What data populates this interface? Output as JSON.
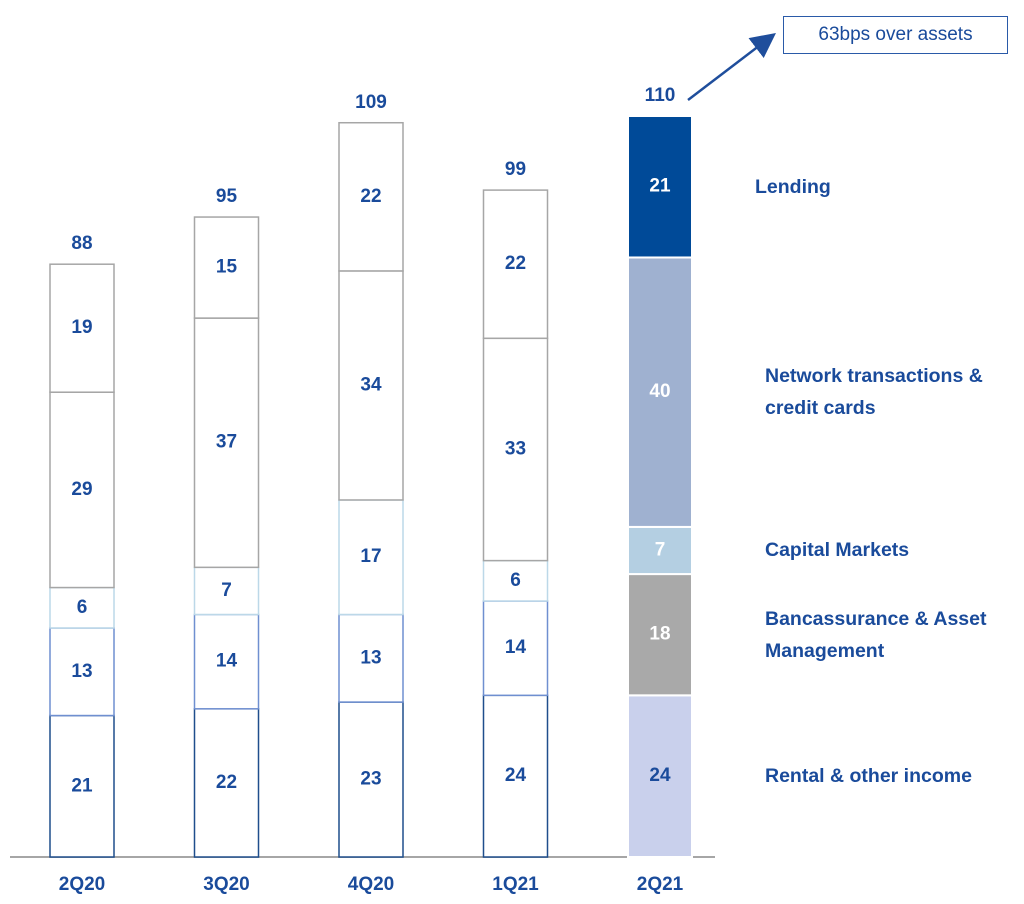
{
  "chart_data": {
    "type": "stacked_bar",
    "categories": [
      "2Q20",
      "3Q20",
      "4Q20",
      "1Q21",
      "2Q21"
    ],
    "series": [
      {
        "name": "Rental & other income",
        "color": "#c9d0ec",
        "edge_color": "#1f4e8c",
        "values": [
          21,
          22,
          23,
          24,
          24
        ]
      },
      {
        "name": "Bancassurance & Asset Management",
        "color": "#a9a9a9",
        "edge_color": "#6f8fd0",
        "values": [
          13,
          14,
          13,
          14,
          18
        ]
      },
      {
        "name": "Capital Markets",
        "color": "#b4cfe2",
        "edge_color": "#bcd8e8",
        "values": [
          6,
          7,
          17,
          6,
          7
        ]
      },
      {
        "name": "Network transactions & credit cards",
        "color": "#9fb1d0",
        "edge_color": "#a6a6a6",
        "values": [
          29,
          37,
          34,
          33,
          40
        ]
      },
      {
        "name": "Lending",
        "color": "#004a98",
        "edge_color": "#a6a6a6",
        "values": [
          19,
          15,
          22,
          22,
          21
        ]
      }
    ],
    "totals": [
      88,
      95,
      109,
      99,
      110
    ],
    "annotation": "63bps over assets"
  }
}
